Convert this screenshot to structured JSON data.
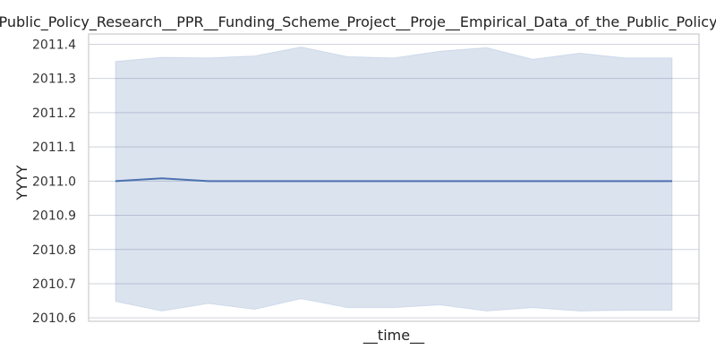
{
  "chart_data": {
    "type": "line",
    "title": "Public_Policy_Research__PPR__Funding_Scheme_Project__Proje__Empirical_Data_of_the_Public_Policy",
    "xlabel": "__time__",
    "ylabel": "YYYY",
    "ylim": [
      2010.59,
      2011.43
    ],
    "yticks": [
      "2010.6",
      "2010.7",
      "2010.8",
      "2010.9",
      "2011.0",
      "2011.1",
      "2011.2",
      "2011.3",
      "2011.4"
    ],
    "grid": true,
    "x": [
      0,
      1,
      2,
      3,
      4,
      5,
      6,
      7,
      8,
      9,
      10,
      11,
      12
    ],
    "series": [
      {
        "values": [
          2011.0,
          2011.008,
          2011.0,
          2011.0,
          2011.0,
          2011.0,
          2011.0,
          2011.0,
          2011.0,
          2011.0,
          2011.0,
          2011.0,
          2011.0
        ],
        "upper": [
          2011.35,
          2011.362,
          2011.36,
          2011.366,
          2011.392,
          2011.364,
          2011.36,
          2011.38,
          2011.39,
          2011.356,
          2011.374,
          2011.36,
          2011.36
        ],
        "lower": [
          2010.648,
          2010.62,
          2010.642,
          2010.625,
          2010.656,
          2010.63,
          2010.63,
          2010.638,
          2010.62,
          2010.63,
          2010.62,
          2010.622,
          2010.622
        ],
        "color": "#4c72b0",
        "band_color": "#4c72b0"
      }
    ]
  }
}
